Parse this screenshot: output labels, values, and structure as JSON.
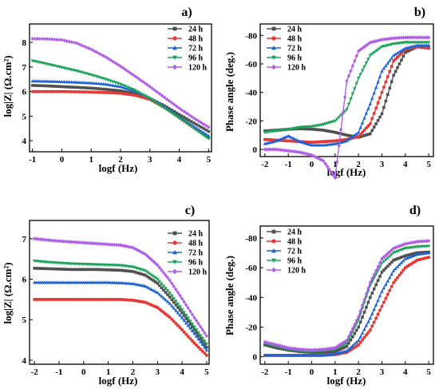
{
  "legend_labels": [
    "24 h",
    "48 h",
    "72 h",
    "96 h",
    "120 h"
  ],
  "series_colors": [
    "#505050",
    "#e53935",
    "#1e63d6",
    "#1fa35b",
    "#b15ee6"
  ],
  "chart_data": [
    {
      "panel": "a)",
      "type": "line",
      "xlabel": "logf (Hz)",
      "ylabel": "log|Z| (Ω.cm²)",
      "xlim": [
        -1.1,
        5.1
      ],
      "ylim": [
        3.55,
        8.75
      ],
      "xticks": [
        -1,
        0,
        1,
        2,
        3,
        4,
        5
      ],
      "yticks": [
        4,
        5,
        6,
        7,
        8
      ],
      "y_inverted": false,
      "grid": false,
      "legend": "top-right",
      "x": [
        -1,
        -0.5,
        0,
        0.5,
        1,
        1.5,
        2,
        2.5,
        3,
        3.5,
        4,
        4.5,
        5
      ],
      "series": [
        {
          "name": "24 h",
          "values": [
            6.25,
            6.23,
            6.2,
            6.17,
            6.14,
            6.09,
            6.03,
            5.92,
            5.72,
            5.42,
            5.07,
            4.72,
            4.38
          ]
        },
        {
          "name": "48 h",
          "values": [
            6.0,
            6.0,
            6.0,
            5.99,
            5.98,
            5.96,
            5.93,
            5.85,
            5.68,
            5.35,
            4.94,
            4.53,
            4.12
          ]
        },
        {
          "name": "72 h",
          "values": [
            6.43,
            6.42,
            6.4,
            6.38,
            6.35,
            6.3,
            6.2,
            6.02,
            5.74,
            5.38,
            4.98,
            4.58,
            4.2
          ]
        },
        {
          "name": "96 h",
          "values": [
            7.25,
            7.12,
            6.98,
            6.84,
            6.68,
            6.5,
            6.3,
            6.05,
            5.72,
            5.33,
            4.92,
            4.5,
            4.08
          ]
        },
        {
          "name": "120 h",
          "values": [
            8.15,
            8.14,
            8.1,
            7.97,
            7.72,
            7.4,
            7.03,
            6.62,
            6.2,
            5.76,
            5.32,
            4.92,
            4.55
          ]
        }
      ]
    },
    {
      "panel": "b)",
      "type": "line",
      "xlabel": "logf (Hz)",
      "ylabel": "Phase angle (deg.)",
      "xlim": [
        -2.2,
        5.2
      ],
      "ylim": [
        5,
        -88
      ],
      "xticks": [
        -2,
        -1,
        0,
        1,
        2,
        3,
        4,
        5
      ],
      "yticks": [
        0,
        -20,
        -40,
        -60,
        -80
      ],
      "y_inverted": true,
      "grid": false,
      "legend": "top-left",
      "x": [
        -2,
        -1.5,
        -1,
        -0.5,
        0,
        0.5,
        1,
        1.5,
        2,
        2.5,
        3,
        3.5,
        4,
        4.5,
        5
      ],
      "series": [
        {
          "name": "24 h",
          "values": [
            -13,
            -13.5,
            -14.2,
            -14.5,
            -14.2,
            -13.5,
            -12,
            -10,
            -8.5,
            -11,
            -25,
            -52,
            -68,
            -72,
            -72
          ]
        },
        {
          "name": "48 h",
          "values": [
            -7,
            -6.5,
            -6,
            -5.5,
            -5,
            -5.5,
            -6,
            -7,
            -9,
            -18,
            -40,
            -62,
            -70,
            -72,
            -71
          ]
        },
        {
          "name": "72 h",
          "values": [
            -4,
            -6,
            -9.5,
            -5.5,
            -3,
            -3,
            -4,
            -6,
            -12,
            -32,
            -55,
            -66,
            -71,
            -73,
            -73
          ]
        },
        {
          "name": "96 h",
          "values": [
            -12,
            -13,
            -14,
            -15.5,
            -16,
            -17.5,
            -20,
            -28,
            -50,
            -66,
            -72,
            -74,
            -75,
            -75,
            -75
          ]
        },
        {
          "name": "120 h",
          "values": [
            0,
            0,
            1,
            2,
            4,
            8,
            20,
            -48,
            -69,
            -75,
            -77,
            -78,
            -78.5,
            -78.5,
            -78.5
          ]
        }
      ]
    },
    {
      "panel": "c)",
      "type": "line",
      "xlabel": "logf (Hz)",
      "ylabel": "log|Z| (Ω.cm²)",
      "xlim": [
        -2.2,
        5.1
      ],
      "ylim": [
        3.9,
        7.45
      ],
      "xticks": [
        -2,
        -1,
        0,
        1,
        2,
        3,
        4,
        5
      ],
      "yticks": [
        4,
        5,
        6,
        7
      ],
      "y_inverted": false,
      "grid": false,
      "legend": "top-right",
      "x": [
        -2,
        -1.5,
        -1,
        -0.5,
        0,
        0.5,
        1,
        1.5,
        2,
        2.5,
        3,
        3.5,
        4,
        4.5,
        5
      ],
      "series": [
        {
          "name": "24 h",
          "values": [
            6.27,
            6.26,
            6.25,
            6.24,
            6.24,
            6.24,
            6.23,
            6.22,
            6.19,
            6.1,
            5.9,
            5.56,
            5.17,
            4.75,
            4.32
          ]
        },
        {
          "name": "48 h",
          "values": [
            5.5,
            5.5,
            5.5,
            5.5,
            5.5,
            5.5,
            5.5,
            5.5,
            5.48,
            5.43,
            5.3,
            5.06,
            4.75,
            4.42,
            4.12
          ]
        },
        {
          "name": "72 h",
          "values": [
            5.92,
            5.92,
            5.92,
            5.92,
            5.92,
            5.92,
            5.92,
            5.91,
            5.89,
            5.83,
            5.67,
            5.4,
            5.05,
            4.66,
            4.25
          ]
        },
        {
          "name": "96 h",
          "values": [
            6.45,
            6.42,
            6.4,
            6.38,
            6.37,
            6.36,
            6.35,
            6.34,
            6.3,
            6.21,
            6.0,
            5.66,
            5.25,
            4.82,
            4.4
          ]
        },
        {
          "name": "120 h",
          "values": [
            7.0,
            6.97,
            6.94,
            6.92,
            6.9,
            6.88,
            6.86,
            6.84,
            6.78,
            6.62,
            6.35,
            5.97,
            5.52,
            5.05,
            4.6
          ]
        }
      ]
    },
    {
      "panel": "d)",
      "type": "line",
      "xlabel": "logf (Hz)",
      "ylabel": "Phase angle (deg.)",
      "xlim": [
        -2.2,
        5.2
      ],
      "ylim": [
        5,
        -88
      ],
      "xticks": [
        -2,
        -1,
        0,
        1,
        2,
        3,
        4,
        5
      ],
      "yticks": [
        0,
        -20,
        -40,
        -60,
        -80
      ],
      "y_inverted": true,
      "grid": false,
      "legend": "top-left",
      "x": [
        -2,
        -1.5,
        -1,
        -0.5,
        0,
        0.5,
        1,
        1.5,
        2,
        2.5,
        3,
        3.5,
        4,
        4.5,
        5
      ],
      "series": [
        {
          "name": "24 h",
          "values": [
            -8,
            -6,
            -4.5,
            -3.5,
            -3,
            -3,
            -3.5,
            -7,
            -20,
            -40,
            -57,
            -65,
            -68,
            -70,
            -70.5
          ]
        },
        {
          "name": "48 h",
          "values": [
            -1,
            -1,
            -1,
            -1,
            -1,
            -1,
            -1.5,
            -3,
            -8,
            -18,
            -34,
            -50,
            -60,
            -65,
            -67
          ]
        },
        {
          "name": "72 h",
          "values": [
            -1,
            -1,
            -1,
            -1,
            -1,
            -1,
            -2,
            -4,
            -11,
            -26,
            -44,
            -58,
            -66,
            -69,
            -70
          ]
        },
        {
          "name": "96 h",
          "values": [
            -9,
            -7,
            -5,
            -4,
            -3.5,
            -4,
            -5,
            -9,
            -25,
            -48,
            -63,
            -70,
            -73,
            -74,
            -74.5
          ]
        },
        {
          "name": "120 h",
          "values": [
            -10,
            -8,
            -6,
            -5,
            -4.5,
            -5,
            -6,
            -11,
            -27,
            -50,
            -66,
            -73,
            -76,
            -77.5,
            -78
          ]
        }
      ]
    }
  ]
}
